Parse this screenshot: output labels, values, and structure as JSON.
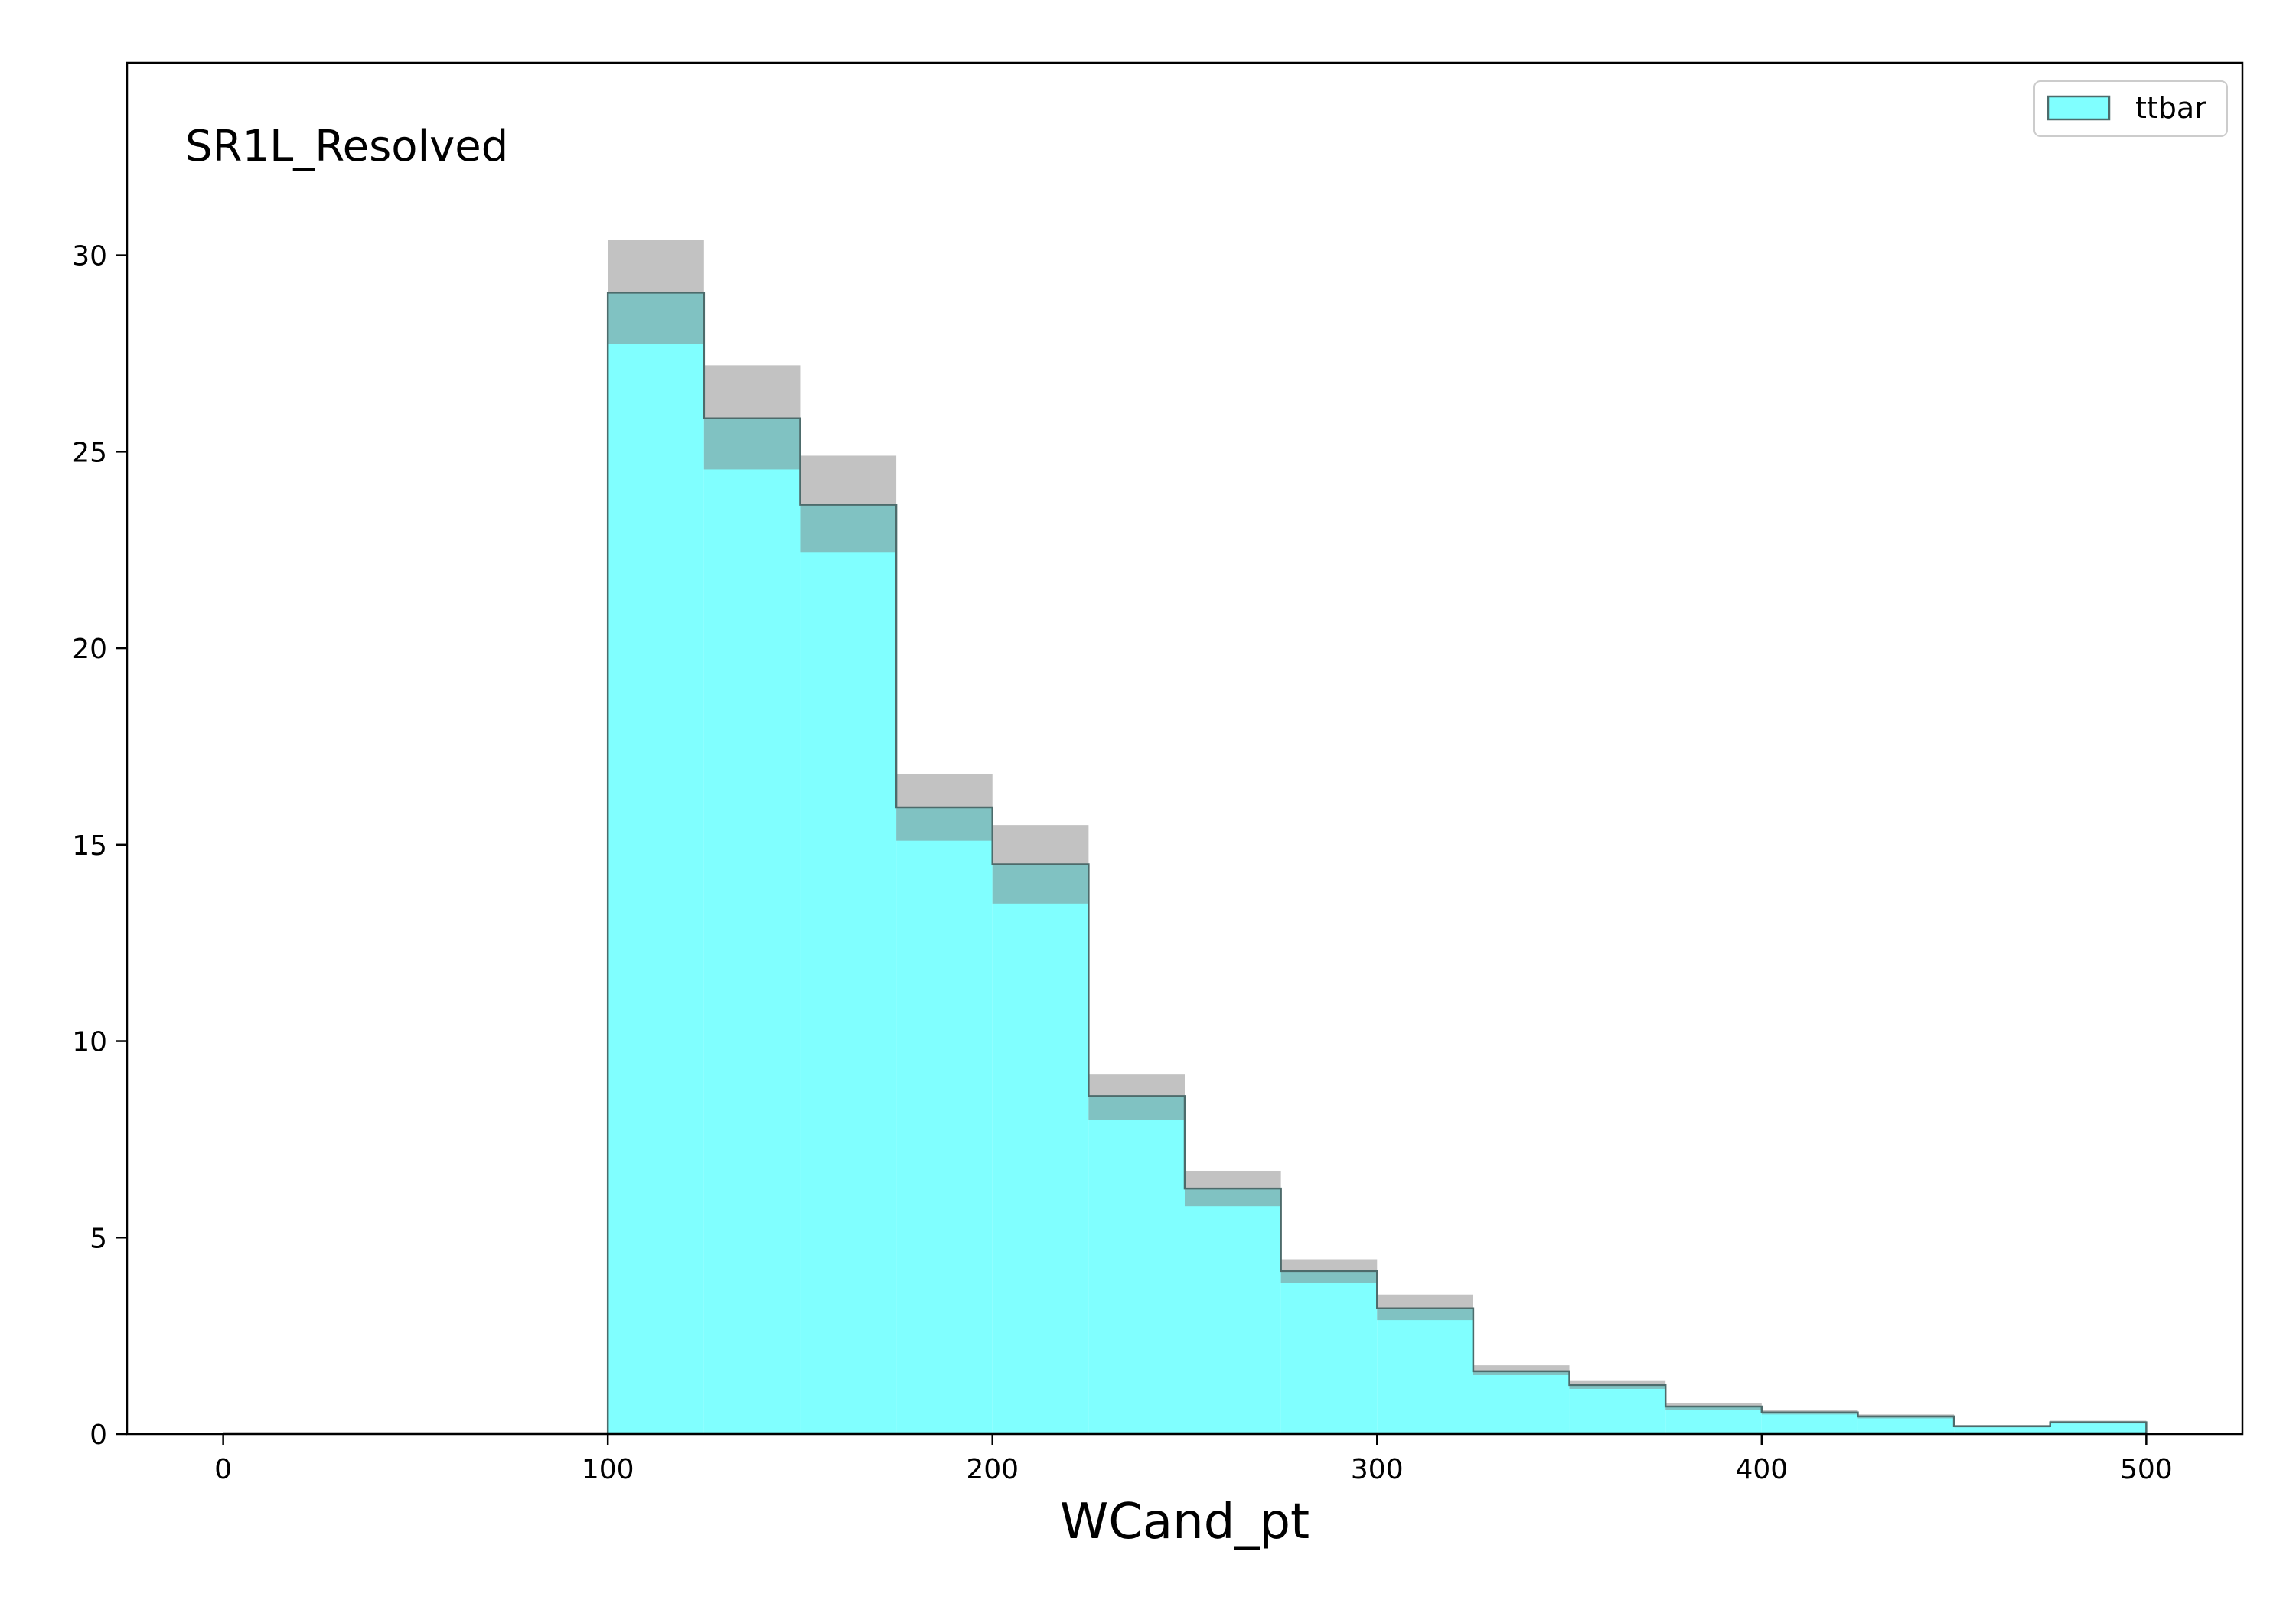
{
  "chart_data": {
    "type": "bar",
    "subtype": "step-histogram",
    "annotation": "SR1L_Resolved",
    "xlabel": "WCand_pt",
    "ylabel": "",
    "xlim": [
      -25,
      525
    ],
    "ylim": [
      0,
      34.9
    ],
    "xticks": [
      0,
      100,
      200,
      300,
      400,
      500
    ],
    "yticks": [
      0,
      5,
      10,
      15,
      20,
      25,
      30
    ],
    "grid": false,
    "legend": {
      "placement": "top-right"
    },
    "colors": {
      "fill": "#80ffff",
      "edge": "#4d6b6b",
      "uncertainty": "#808080"
    },
    "series": [
      {
        "name": "ttbar",
        "bin_edges": [
          100,
          125,
          150,
          175,
          200,
          225,
          250,
          275,
          300,
          325,
          350,
          375,
          400,
          425,
          450,
          475,
          500
        ],
        "values": [
          29.05,
          25.85,
          23.65,
          15.95,
          14.5,
          8.6,
          6.25,
          4.15,
          3.2,
          1.6,
          1.25,
          0.7,
          0.55,
          0.45,
          0.2,
          0.3
        ],
        "unc_low": [
          27.75,
          24.55,
          22.45,
          15.1,
          13.5,
          8.0,
          5.8,
          3.85,
          2.9,
          1.5,
          1.15,
          0.62,
          0.5,
          0.4,
          0.17,
          0.27
        ],
        "unc_high": [
          30.4,
          27.2,
          24.9,
          16.8,
          15.5,
          9.15,
          6.7,
          4.45,
          3.55,
          1.75,
          1.35,
          0.78,
          0.62,
          0.5,
          0.23,
          0.34
        ]
      }
    ]
  }
}
